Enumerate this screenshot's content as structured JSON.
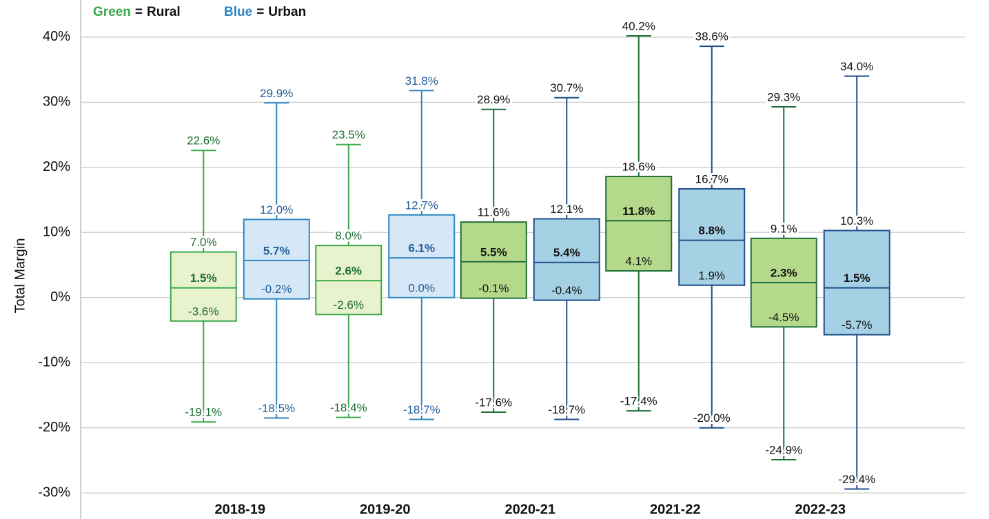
{
  "chart_data": {
    "type": "box",
    "y_label": "Total Margin",
    "legend_separator": "=",
    "categories": [
      "2018-19",
      "2019-20",
      "2020-21",
      "2021-22",
      "2022-23"
    ],
    "stats_order": [
      "min",
      "q1",
      "median",
      "q3",
      "max"
    ],
    "ylim": [
      -34,
      45.7
    ],
    "yticks": [
      {
        "value": -30,
        "label": "-30%"
      },
      {
        "value": -20,
        "label": "-20%"
      },
      {
        "value": -10,
        "label": "-10%"
      },
      {
        "value": 0,
        "label": "0%"
      },
      {
        "value": 10,
        "label": "10%"
      },
      {
        "value": 20,
        "label": "20%"
      },
      {
        "value": 30,
        "label": "30%"
      },
      {
        "value": 40,
        "label": "40%"
      }
    ],
    "grid": true,
    "series": [
      {
        "name": "Rural",
        "color_name": "Green",
        "legend_color": "#3aa94a",
        "fill": [
          "#e8f2cc",
          "#e8f2cc",
          "#b5d98a",
          "#b5d98a",
          "#b5d98a"
        ],
        "stroke": [
          "#3aa94a",
          "#3aa94a",
          "#1f6e3a",
          "#1f6e3a",
          "#1f6e3a"
        ],
        "label_color": [
          "#1e6e32",
          "#1e6e32",
          "#111111",
          "#111111",
          "#111111"
        ],
        "values": [
          [
            -19.1,
            -3.6,
            1.5,
            7.0,
            22.6
          ],
          [
            -18.4,
            -2.6,
            2.6,
            8.0,
            23.5
          ],
          [
            -17.6,
            -0.1,
            5.5,
            11.6,
            28.9
          ],
          [
            -17.4,
            4.1,
            11.8,
            18.6,
            40.2
          ],
          [
            -24.9,
            -4.5,
            2.3,
            9.1,
            29.3
          ]
        ],
        "value_labels": [
          [
            "-19.1%",
            "-3.6%",
            "1.5%",
            "7.0%",
            "22.6%"
          ],
          [
            "-18.4%",
            "-2.6%",
            "2.6%",
            "8.0%",
            "23.5%"
          ],
          [
            "-17.6%",
            "-0.1%",
            "5.5%",
            "11.6%",
            "28.9%"
          ],
          [
            "-17.4%",
            "4.1%",
            "11.8%",
            "18.6%",
            "40.2%"
          ],
          [
            "-24.9%",
            "-4.5%",
            "2.3%",
            "9.1%",
            "29.3%"
          ]
        ]
      },
      {
        "name": "Urban",
        "color_name": "Blue",
        "legend_color": "#2e86c1",
        "fill": [
          "#d6e8f7",
          "#d6e8f7",
          "#a6d0e4",
          "#a6d0e4",
          "#a6d0e4"
        ],
        "stroke": [
          "#2e86c1",
          "#2e86c1",
          "#1f4e8c",
          "#1f4e8c",
          "#1f4e8c"
        ],
        "label_color": [
          "#1f5c99",
          "#1f5c99",
          "#111111",
          "#111111",
          "#111111"
        ],
        "values": [
          [
            -18.5,
            -0.2,
            5.7,
            12.0,
            29.9
          ],
          [
            -18.7,
            0.0,
            6.1,
            12.7,
            31.8
          ],
          [
            -18.7,
            -0.4,
            5.4,
            12.1,
            30.7
          ],
          [
            -20.0,
            1.9,
            8.8,
            16.7,
            38.6
          ],
          [
            -29.4,
            -5.7,
            1.5,
            10.3,
            34.0
          ]
        ],
        "value_labels": [
          [
            "-18.5%",
            "-0.2%",
            "5.7%",
            "12.0%",
            "29.9%"
          ],
          [
            "-18.7%",
            "0.0%",
            "6.1%",
            "12.7%",
            "31.8%"
          ],
          [
            "-18.7%",
            "-0.4%",
            "5.4%",
            "12.1%",
            "30.7%"
          ],
          [
            "-20.0%",
            "1.9%",
            "8.8%",
            "16.7%",
            "38.6%"
          ],
          [
            "-29.4%",
            "-5.7%",
            "1.5%",
            "10.3%",
            "34.0%"
          ]
        ]
      }
    ]
  }
}
